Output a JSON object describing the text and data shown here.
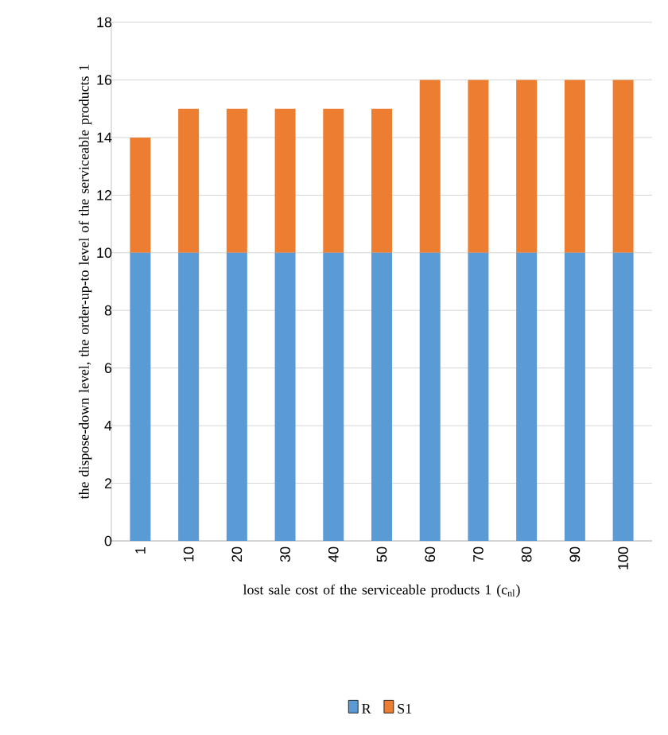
{
  "chart_data": {
    "type": "bar",
    "stacked": true,
    "xlabel": "lost sale cost of the serviceable products 1 (c$_{nl}$)",
    "ylabel": "the dispose-down level, the order-up-to level of the serviceable products 1",
    "categories": [
      "1",
      "10",
      "20",
      "30",
      "40",
      "50",
      "60",
      "70",
      "80",
      "90",
      "100"
    ],
    "series": [
      {
        "name": "R",
        "color": "#5b9bd5",
        "values": [
          10,
          10,
          10,
          10,
          10,
          10,
          10,
          10,
          10,
          10,
          10
        ]
      },
      {
        "name": "S1",
        "color": "#ed7d31",
        "values": [
          4,
          5,
          5,
          5,
          5,
          5,
          6,
          6,
          6,
          6,
          6
        ]
      }
    ],
    "ylim": [
      0,
      18
    ],
    "yticks": [
      0,
      2,
      4,
      6,
      8,
      10,
      12,
      14,
      16,
      18
    ],
    "grid": "y",
    "legend": "bottom"
  }
}
